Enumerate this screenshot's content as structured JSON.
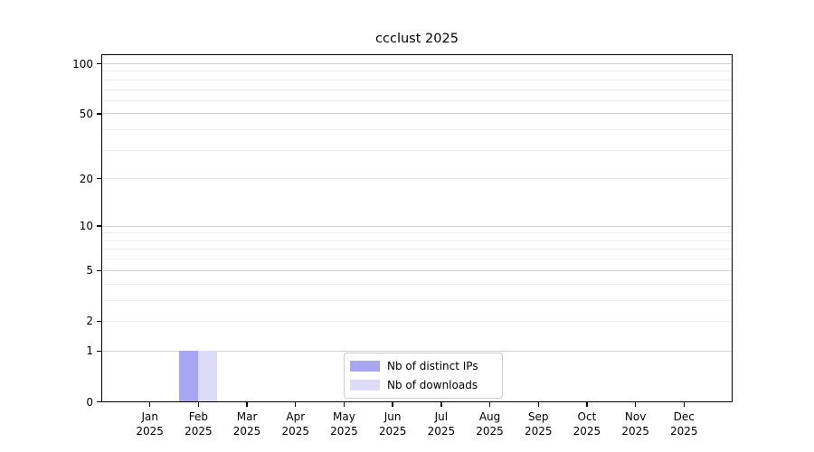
{
  "chart_data": {
    "type": "bar",
    "title": "ccclust 2025",
    "categories": [
      "Jan",
      "Feb",
      "Mar",
      "Apr",
      "May",
      "Jun",
      "Jul",
      "Aug",
      "Sep",
      "Oct",
      "Nov",
      "Dec"
    ],
    "xtick_year": "2025",
    "series": [
      {
        "name": "Nb of distinct IPs",
        "color": "#a6a6f3",
        "values": [
          0,
          1,
          0,
          0,
          0,
          0,
          0,
          0,
          0,
          0,
          0,
          0
        ]
      },
      {
        "name": "Nb of downloads",
        "color": "#dcdcf8",
        "values": [
          0,
          1,
          0,
          0,
          0,
          0,
          0,
          0,
          0,
          0,
          0,
          0
        ]
      }
    ],
    "yscale": "log10(value+1)",
    "ylim": [
      0,
      100
    ],
    "ytick_values": [
      0,
      1,
      2,
      5,
      10,
      20,
      50,
      100
    ],
    "grid": {
      "minor_values": [
        2,
        3,
        4,
        6,
        7,
        8,
        9,
        20,
        30,
        40,
        60,
        70,
        80,
        90
      ],
      "major_values": [
        1,
        5,
        10,
        50,
        100
      ],
      "minor_color": "#ededed",
      "major_color": "#d2d2d2"
    },
    "legend": {
      "position": "lower center"
    }
  }
}
